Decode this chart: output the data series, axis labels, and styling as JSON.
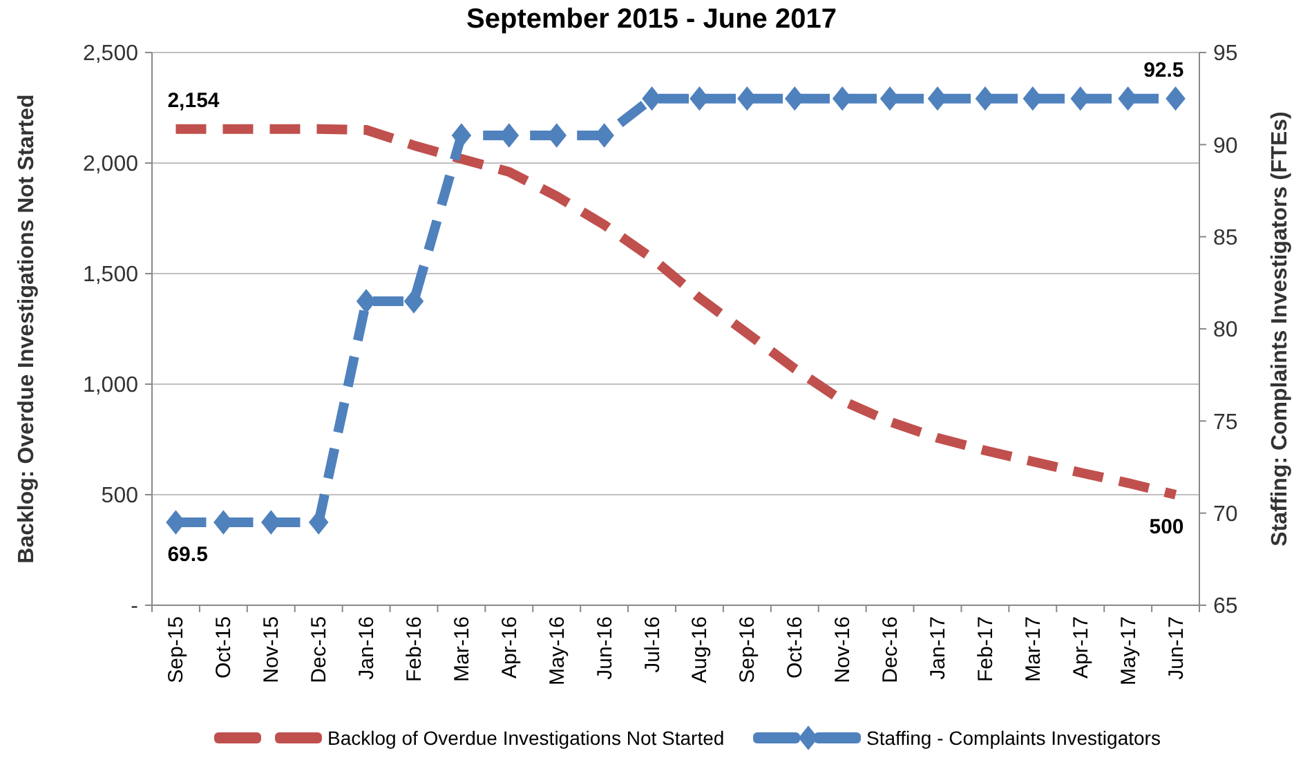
{
  "chart_data": {
    "type": "line",
    "title": "September 2015 - June 2017",
    "ylabel": "Backlog: Overdue Investigations Not Started",
    "y2label": "Staffing:  Complaints Investigators (FTEs)",
    "categories": [
      "Sep-15",
      "Oct-15",
      "Nov-15",
      "Dec-15",
      "Jan-16",
      "Feb-16",
      "Mar-16",
      "Apr-16",
      "May-16",
      "Jun-16",
      "Jul-16",
      "Aug-16",
      "Sep-16",
      "Oct-16",
      "Nov-16",
      "Dec-16",
      "Jan-17",
      "Feb-17",
      "Mar-17",
      "Apr-17",
      "May-17",
      "Jun-17"
    ],
    "series": [
      {
        "name": "Backlog of Overdue Investigations Not Started",
        "color": "#c0504d",
        "line_style": "dashed",
        "marker": "none",
        "values": [
          2154,
          2154,
          2154,
          2154,
          2150,
          2080,
          2019,
          1960,
          1850,
          1720,
          1570,
          1390,
          1230,
          1070,
          925,
          830,
          757,
          700,
          650,
          600,
          553,
          500
        ],
        "value_labels": [
          "2,154",
          null,
          null,
          null,
          null,
          null,
          null,
          null,
          null,
          null,
          null,
          null,
          null,
          null,
          null,
          null,
          null,
          null,
          null,
          null,
          null,
          "500"
        ]
      },
      {
        "name": "Staffing - Complaints Investigators",
        "color": "#4f81bd",
        "axis": "y2",
        "line_style": "dashed",
        "marker": "diamond",
        "values": [
          69.5,
          69.5,
          69.5,
          69.5,
          81.5,
          81.5,
          90.5,
          90.5,
          90.5,
          90.5,
          92.5,
          92.5,
          92.5,
          92.5,
          92.5,
          92.5,
          92.5,
          92.5,
          92.5,
          92.5,
          92.5,
          92.5
        ],
        "value_labels": [
          "69.5",
          null,
          null,
          null,
          null,
          null,
          null,
          null,
          null,
          null,
          null,
          null,
          null,
          null,
          null,
          null,
          null,
          null,
          null,
          null,
          null,
          "92.5"
        ]
      }
    ],
    "ylim": [
      0,
      2500
    ],
    "yticks": [
      {
        "value": 0,
        "label": "-"
      },
      {
        "value": 500,
        "label": "500"
      },
      {
        "value": 1000,
        "label": "1,000"
      },
      {
        "value": 1500,
        "label": "1,500"
      },
      {
        "value": 2000,
        "label": "2,000"
      },
      {
        "value": 2500,
        "label": "2,500"
      }
    ],
    "y2lim": [
      65,
      95
    ],
    "y2ticks": [
      65,
      70,
      75,
      80,
      85,
      90,
      95
    ],
    "grid": "y",
    "legend": "bottom"
  }
}
